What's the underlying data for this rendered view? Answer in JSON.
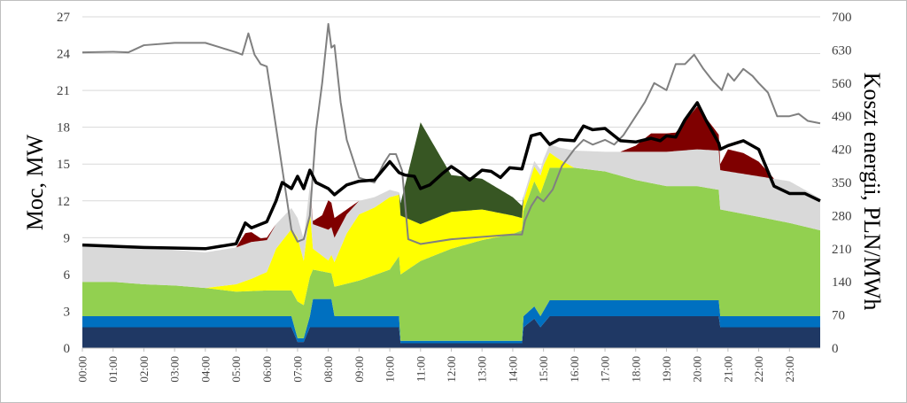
{
  "chart_data": {
    "type": "area",
    "ylabel": "Moc, MW",
    "y2label": "Koszt energii, PLN/MWh",
    "ylim": [
      0,
      27
    ],
    "yticks": [
      0,
      3,
      6,
      9,
      12,
      15,
      18,
      21,
      24,
      27
    ],
    "y2lim": [
      0,
      700
    ],
    "y2ticks": [
      0,
      70,
      140,
      210,
      280,
      350,
      420,
      490,
      560,
      630,
      700
    ],
    "x_unit": "hours",
    "xlim": [
      0,
      24
    ],
    "x_tick_labels": [
      "00:00",
      "01:00",
      "02:00",
      "03:00",
      "04:00",
      "05:00",
      "06:00",
      "07:00",
      "08:00",
      "09:00",
      "10:00",
      "11:00",
      "12:00",
      "13:00",
      "14:00",
      "15:00",
      "16:00",
      "17:00",
      "18:00",
      "19:00",
      "20:00",
      "21:00",
      "22:00",
      "23:00"
    ],
    "grid": "horizontal",
    "legend": "none",
    "stacked_layers": [
      {
        "color": "#1f3864",
        "points": [
          [
            0,
            1.7
          ],
          [
            6.8,
            1.7
          ],
          [
            7.0,
            0.5
          ],
          [
            7.2,
            0.5
          ],
          [
            7.4,
            1.7
          ],
          [
            10.3,
            1.7
          ],
          [
            10.35,
            0.4
          ],
          [
            14.3,
            0.4
          ],
          [
            14.35,
            1.7
          ],
          [
            14.7,
            2.4
          ],
          [
            14.9,
            1.7
          ],
          [
            15.2,
            2.6
          ],
          [
            20.7,
            2.6
          ],
          [
            20.75,
            1.7
          ],
          [
            24,
            1.7
          ]
        ]
      },
      {
        "color": "#0070c0",
        "points": [
          [
            0,
            0.9
          ],
          [
            6.8,
            0.9
          ],
          [
            7.0,
            0.3
          ],
          [
            7.2,
            0.3
          ],
          [
            7.4,
            0.9
          ],
          [
            7.5,
            2.3
          ],
          [
            8.1,
            2.3
          ],
          [
            8.2,
            0.9
          ],
          [
            10.3,
            0.9
          ],
          [
            10.35,
            0.2
          ],
          [
            14.3,
            0.2
          ],
          [
            14.35,
            0.9
          ],
          [
            14.7,
            1.0
          ],
          [
            14.9,
            0.9
          ],
          [
            15.2,
            1.3
          ],
          [
            20.7,
            1.3
          ],
          [
            20.75,
            0.9
          ],
          [
            24,
            0.9
          ]
        ]
      },
      {
        "color": "#92d050",
        "points": [
          [
            0,
            2.8
          ],
          [
            1.0,
            2.8
          ],
          [
            2.0,
            2.6
          ],
          [
            3.0,
            2.5
          ],
          [
            4.0,
            2.3
          ],
          [
            5.0,
            2.0
          ],
          [
            6.0,
            2.1
          ],
          [
            6.8,
            2.1
          ],
          [
            7.0,
            3.0
          ],
          [
            7.2,
            2.7
          ],
          [
            7.4,
            3.2
          ],
          [
            7.5,
            2.4
          ],
          [
            8.1,
            2.1
          ],
          [
            8.2,
            2.4
          ],
          [
            9.0,
            2.9
          ],
          [
            10.0,
            3.8
          ],
          [
            10.3,
            4.9
          ],
          [
            10.35,
            5.4
          ],
          [
            11.0,
            6.5
          ],
          [
            12.0,
            7.5
          ],
          [
            13.0,
            8.2
          ],
          [
            14.0,
            8.7
          ],
          [
            14.3,
            9.0
          ],
          [
            14.35,
            8.6
          ],
          [
            14.7,
            10.2
          ],
          [
            14.9,
            10.0
          ],
          [
            15.2,
            10.8
          ],
          [
            16.0,
            10.8
          ],
          [
            17.0,
            10.5
          ],
          [
            18.0,
            9.8
          ],
          [
            19.0,
            9.3
          ],
          [
            20.0,
            9.3
          ],
          [
            20.7,
            9.0
          ],
          [
            20.75,
            8.7
          ],
          [
            22.0,
            8.1
          ],
          [
            23.0,
            7.6
          ],
          [
            24,
            7.0
          ]
        ]
      },
      {
        "color": "#ffff00",
        "points": [
          [
            0,
            0
          ],
          [
            4.0,
            0
          ],
          [
            4.5,
            0.3
          ],
          [
            5.0,
            0.6
          ],
          [
            5.5,
            1.0
          ],
          [
            6.0,
            1.5
          ],
          [
            6.3,
            3.4
          ],
          [
            6.8,
            5.0
          ],
          [
            7.0,
            5.2
          ],
          [
            7.2,
            3.6
          ],
          [
            7.4,
            5.5
          ],
          [
            7.5,
            1.7
          ],
          [
            8.0,
            1.0
          ],
          [
            8.2,
            2.0
          ],
          [
            8.6,
            4.1
          ],
          [
            9.0,
            5.4
          ],
          [
            9.5,
            5.5
          ],
          [
            10.0,
            5.9
          ],
          [
            10.3,
            5.0
          ],
          [
            10.35,
            4.8
          ],
          [
            11.0,
            3.0
          ],
          [
            11.5,
            3.0
          ],
          [
            12.0,
            3.0
          ],
          [
            13.0,
            2.5
          ],
          [
            14.0,
            1.5
          ],
          [
            14.3,
            1.0
          ],
          [
            14.35,
            0.8
          ],
          [
            14.7,
            1.2
          ],
          [
            15.0,
            1.6
          ],
          [
            15.5,
            0.7
          ],
          [
            16.0,
            0
          ],
          [
            24,
            0
          ]
        ]
      },
      {
        "color": "#d9d9d9",
        "points": [
          [
            0,
            2.9
          ],
          [
            4.0,
            2.9
          ],
          [
            5.0,
            3.0
          ],
          [
            5.5,
            3.0
          ],
          [
            6.0,
            2.6
          ],
          [
            6.3,
            2.0
          ],
          [
            7.0,
            1.6
          ],
          [
            7.4,
            2.0
          ],
          [
            7.5,
            2.0
          ],
          [
            8.0,
            2.5
          ],
          [
            8.2,
            2.0
          ],
          [
            9.0,
            1.1
          ],
          [
            10.0,
            0.6
          ],
          [
            10.3,
            0.2
          ],
          [
            10.35,
            0
          ],
          [
            14.3,
            0
          ],
          [
            14.35,
            0.4
          ],
          [
            15.0,
            0.5
          ],
          [
            16.0,
            1.4
          ],
          [
            17.0,
            1.6
          ],
          [
            18.0,
            2.3
          ],
          [
            19.0,
            2.8
          ],
          [
            20.0,
            3.0
          ],
          [
            20.7,
            3.2
          ],
          [
            20.75,
            3.2
          ],
          [
            22.0,
            3.3
          ],
          [
            23.0,
            3.4
          ],
          [
            24,
            2.6
          ]
        ]
      },
      {
        "color": "#7f0000",
        "points": [
          [
            0,
            0
          ],
          [
            5.0,
            0
          ],
          [
            5.3,
            0.9
          ],
          [
            5.5,
            0.8
          ],
          [
            5.8,
            0.2
          ],
          [
            6.0,
            0.2
          ],
          [
            6.3,
            0
          ],
          [
            7.4,
            0
          ],
          [
            7.8,
            1.0
          ],
          [
            8.0,
            2.4
          ],
          [
            8.2,
            1.6
          ],
          [
            8.6,
            0.4
          ],
          [
            9.0,
            0
          ],
          [
            17.5,
            0
          ],
          [
            18.0,
            0.5
          ],
          [
            18.5,
            1.5
          ],
          [
            19.0,
            1.5
          ],
          [
            19.3,
            1.5
          ],
          [
            20.0,
            3.5
          ],
          [
            20.7,
            1.3
          ],
          [
            20.75,
            0.5
          ],
          [
            21.0,
            1.8
          ],
          [
            21.5,
            1.7
          ],
          [
            22.0,
            1.2
          ],
          [
            22.5,
            0
          ],
          [
            24,
            0
          ]
        ]
      },
      {
        "color": "#375623",
        "points": [
          [
            0,
            0
          ],
          [
            10.3,
            0
          ],
          [
            10.35,
            1.0
          ],
          [
            11.0,
            8.3
          ],
          [
            12.0,
            3.0
          ],
          [
            13.0,
            2.5
          ],
          [
            14.0,
            1.5
          ],
          [
            14.3,
            1.0
          ],
          [
            14.35,
            0
          ],
          [
            24,
            0
          ]
        ]
      }
    ],
    "total_line": {
      "color": "#000000",
      "points": [
        [
          0,
          8.4
        ],
        [
          2.0,
          8.2
        ],
        [
          4.0,
          8.1
        ],
        [
          4.5,
          8.3
        ],
        [
          5.0,
          8.5
        ],
        [
          5.3,
          10.2
        ],
        [
          5.5,
          9.8
        ],
        [
          6.0,
          10.3
        ],
        [
          6.3,
          12.0
        ],
        [
          6.5,
          13.5
        ],
        [
          6.8,
          13.0
        ],
        [
          7.0,
          14.0
        ],
        [
          7.2,
          13.0
        ],
        [
          7.4,
          14.5
        ],
        [
          7.6,
          13.5
        ],
        [
          8.0,
          13.0
        ],
        [
          8.2,
          12.5
        ],
        [
          8.6,
          13.3
        ],
        [
          9.0,
          13.6
        ],
        [
          9.5,
          13.7
        ],
        [
          10.0,
          15.2
        ],
        [
          10.3,
          14.3
        ],
        [
          10.5,
          14.1
        ],
        [
          10.8,
          14.0
        ],
        [
          11.0,
          13.0
        ],
        [
          11.3,
          13.3
        ],
        [
          11.7,
          14.2
        ],
        [
          12.0,
          14.8
        ],
        [
          12.3,
          14.3
        ],
        [
          12.6,
          13.7
        ],
        [
          13.0,
          14.5
        ],
        [
          13.3,
          14.4
        ],
        [
          13.6,
          13.9
        ],
        [
          13.9,
          14.7
        ],
        [
          14.3,
          14.6
        ],
        [
          14.6,
          17.3
        ],
        [
          14.9,
          17.5
        ],
        [
          15.2,
          16.6
        ],
        [
          15.5,
          17.0
        ],
        [
          16.0,
          16.9
        ],
        [
          16.3,
          18.1
        ],
        [
          16.6,
          17.8
        ],
        [
          17.0,
          17.9
        ],
        [
          17.5,
          16.9
        ],
        [
          18.0,
          16.8
        ],
        [
          18.5,
          17.1
        ],
        [
          18.8,
          16.9
        ],
        [
          19.0,
          17.3
        ],
        [
          19.3,
          17.2
        ],
        [
          19.6,
          18.6
        ],
        [
          20.0,
          20.0
        ],
        [
          20.3,
          18.5
        ],
        [
          20.7,
          16.7
        ],
        [
          20.75,
          16.2
        ],
        [
          21.0,
          16.5
        ],
        [
          21.5,
          16.9
        ],
        [
          22.0,
          16.2
        ],
        [
          22.5,
          13.2
        ],
        [
          23.0,
          12.6
        ],
        [
          23.5,
          12.6
        ],
        [
          24,
          12.0
        ]
      ]
    },
    "price_line": {
      "color": "#808080",
      "points": [
        [
          0,
          625
        ],
        [
          1.0,
          626
        ],
        [
          1.5,
          625
        ],
        [
          2.0,
          640
        ],
        [
          3.0,
          645
        ],
        [
          4.0,
          645
        ],
        [
          4.5,
          635
        ],
        [
          5.0,
          625
        ],
        [
          5.2,
          620
        ],
        [
          5.4,
          665
        ],
        [
          5.6,
          620
        ],
        [
          5.8,
          600
        ],
        [
          6.0,
          595
        ],
        [
          6.2,
          510
        ],
        [
          6.5,
          380
        ],
        [
          6.8,
          250
        ],
        [
          7.0,
          225
        ],
        [
          7.2,
          230
        ],
        [
          7.4,
          280
        ],
        [
          7.6,
          460
        ],
        [
          7.8,
          560
        ],
        [
          8.0,
          685
        ],
        [
          8.1,
          635
        ],
        [
          8.2,
          640
        ],
        [
          8.4,
          520
        ],
        [
          8.6,
          440
        ],
        [
          8.8,
          400
        ],
        [
          9.0,
          360
        ],
        [
          9.5,
          350
        ],
        [
          9.8,
          390
        ],
        [
          10.0,
          410
        ],
        [
          10.2,
          410
        ],
        [
          10.4,
          375
        ],
        [
          10.6,
          230
        ],
        [
          11.0,
          220
        ],
        [
          12.0,
          230
        ],
        [
          13.0,
          235
        ],
        [
          14.0,
          240
        ],
        [
          14.3,
          240
        ],
        [
          14.4,
          270
        ],
        [
          14.6,
          300
        ],
        [
          14.8,
          320
        ],
        [
          15.0,
          310
        ],
        [
          15.3,
          335
        ],
        [
          15.6,
          385
        ],
        [
          16.0,
          420
        ],
        [
          16.3,
          440
        ],
        [
          16.6,
          430
        ],
        [
          17.0,
          440
        ],
        [
          17.3,
          430
        ],
        [
          17.6,
          450
        ],
        [
          18.0,
          490
        ],
        [
          18.3,
          520
        ],
        [
          18.6,
          560
        ],
        [
          19.0,
          545
        ],
        [
          19.3,
          600
        ],
        [
          19.6,
          600
        ],
        [
          19.9,
          620
        ],
        [
          20.2,
          590
        ],
        [
          20.5,
          565
        ],
        [
          20.8,
          545
        ],
        [
          21.0,
          580
        ],
        [
          21.2,
          565
        ],
        [
          21.5,
          590
        ],
        [
          21.8,
          575
        ],
        [
          22.0,
          560
        ],
        [
          22.3,
          540
        ],
        [
          22.6,
          490
        ],
        [
          23.0,
          490
        ],
        [
          23.3,
          495
        ],
        [
          23.6,
          480
        ],
        [
          24,
          475
        ]
      ]
    }
  }
}
